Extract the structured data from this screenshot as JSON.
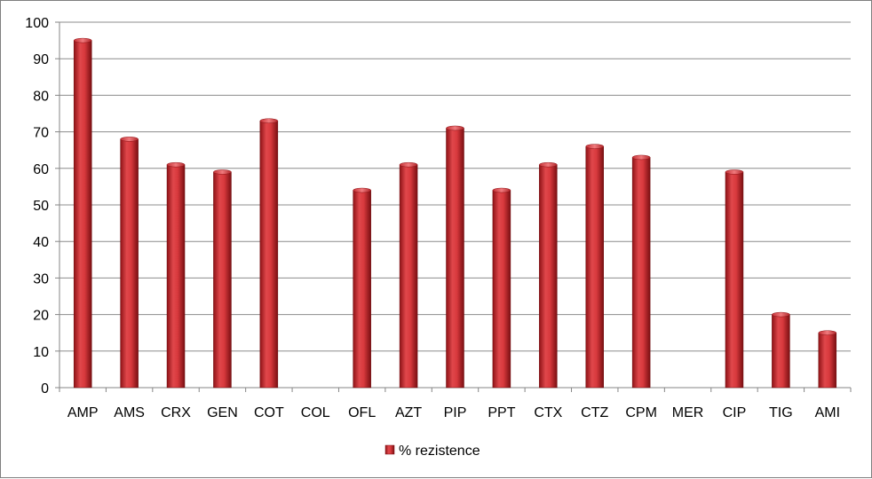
{
  "chart_data": {
    "type": "bar",
    "categories": [
      "AMP",
      "AMS",
      "CRX",
      "GEN",
      "COT",
      "COL",
      "OFL",
      "AZT",
      "PIP",
      "PPT",
      "CTX",
      "CTZ",
      "CPM",
      "MER",
      "CIP",
      "TIG",
      "AMI"
    ],
    "series": [
      {
        "name": "% rezistence",
        "values": [
          95,
          68,
          61,
          59,
          73,
          0,
          54,
          61,
          71,
          54,
          61,
          66,
          63,
          0,
          59,
          20,
          15
        ],
        "color": "#c0282d"
      }
    ],
    "ylim": [
      0,
      100
    ],
    "ytick_labels": [
      "0",
      "10",
      "20",
      "30",
      "40",
      "50",
      "60",
      "70",
      "80",
      "90",
      "100"
    ],
    "grid": true,
    "legend_position": "bottom"
  }
}
